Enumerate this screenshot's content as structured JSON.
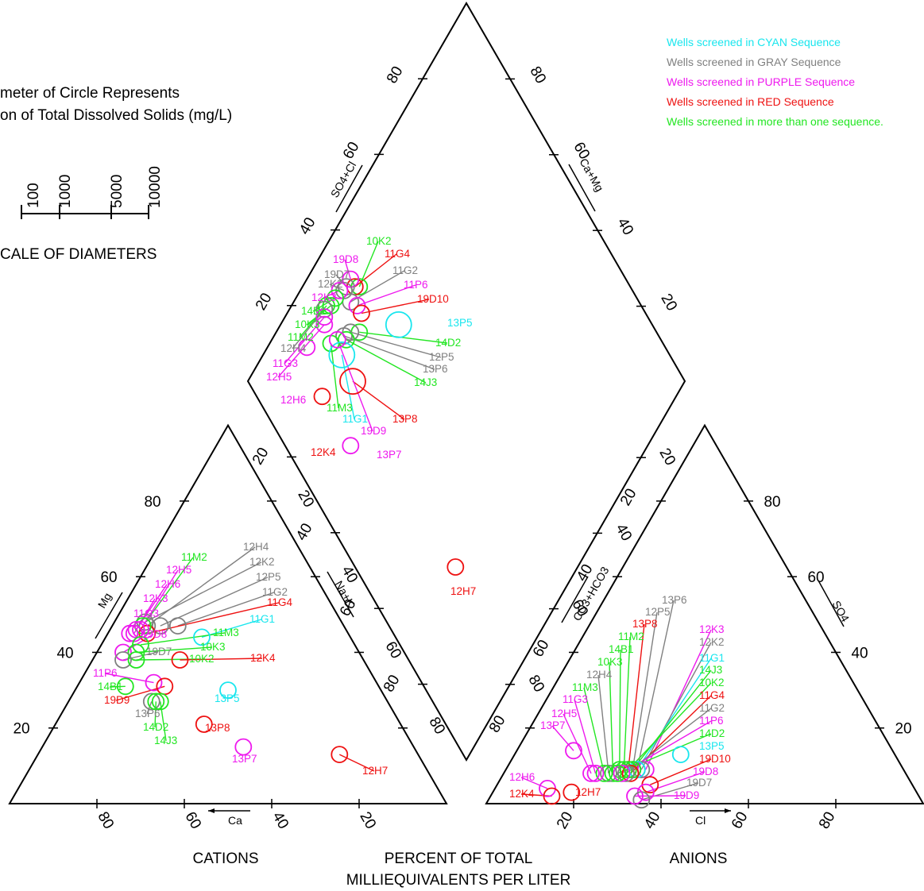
{
  "colors": {
    "cyan": "#19e6ee",
    "gray": "#808080",
    "purple": "#ee19ee",
    "red": "#ee1111",
    "green": "#22e622",
    "axis": "#000000"
  },
  "legend": [
    {
      "text": "Wells screened in CYAN Sequence",
      "color": "cyan"
    },
    {
      "text": "Wells screened in GRAY Sequence",
      "color": "gray"
    },
    {
      "text": "Wells screened in PURPLE Sequence",
      "color": "purple"
    },
    {
      "text": "Wells screened in RED Sequence",
      "color": "red"
    },
    {
      "text": "Wells screened in more than one sequence.",
      "color": "green"
    }
  ],
  "scale_note": {
    "line1": "meter of Circle Represents",
    "line2": "on of Total Dissolved Solids (mg/L)",
    "ticks": [
      "100",
      "1000",
      "5000",
      "10000"
    ],
    "caption": "CALE OF DIAMETERS"
  },
  "bottom_labels": {
    "cations": "CATIONS",
    "anions": "ANIONS",
    "percent_line1": "PERCENT OF TOTAL",
    "percent_line2": "MILLIEQUIVALENTS PER LITER"
  },
  "axes": {
    "mg": "Mg",
    "ca": "Ca",
    "na_k": "Na+K",
    "so4_cl": "SO4+Cl",
    "ca_mg": "Ca+Mg",
    "co3_hco3": "CO3+HCO3",
    "cl": "Cl",
    "so4": "SO4"
  },
  "chart_data": {
    "type": "scatter",
    "subtype": "piper-trilinear",
    "ticks": {
      "mg": [
        "20",
        "40",
        "60",
        "80"
      ],
      "ca": [
        "80",
        "60",
        "40",
        "20"
      ],
      "na_k": [
        "20",
        "40",
        "60",
        "80"
      ],
      "so4_cl": [
        "20",
        "40",
        "60",
        "80"
      ],
      "ca_mg": [
        "80",
        "60",
        "40",
        "20"
      ],
      "co3_hco3": [
        "80",
        "60",
        "40",
        "20"
      ],
      "cl": [
        "20",
        "40",
        "60",
        "80"
      ],
      "so4": [
        "20",
        "40",
        "60",
        "80"
      ]
    },
    "cation_points": [
      {
        "id": "12H4",
        "ca": 45,
        "mg": 47,
        "nak": 8,
        "tds": 1000,
        "group": "gray"
      },
      {
        "id": "12K2",
        "ca": 45,
        "mg": 48,
        "nak": 7,
        "tds": 1000,
        "group": "gray"
      },
      {
        "id": "12P5",
        "ca": 42,
        "mg": 47,
        "nak": 11,
        "tds": 1000,
        "group": "gray"
      },
      {
        "id": "11G2",
        "ca": 38,
        "mg": 47,
        "nak": 15,
        "tds": 1000,
        "group": "gray"
      },
      {
        "id": "11G4",
        "ca": 46,
        "mg": 45,
        "nak": 9,
        "tds": 1000,
        "group": "red"
      },
      {
        "id": "11G1",
        "ca": 34,
        "mg": 44,
        "nak": 22,
        "tds": 1000,
        "group": "cyan"
      },
      {
        "id": "11M2",
        "ca": 46,
        "mg": 47,
        "nak": 7,
        "tds": 1000,
        "group": "green"
      },
      {
        "id": "12H5",
        "ca": 47,
        "mg": 46,
        "nak": 7,
        "tds": 1000,
        "group": "purple"
      },
      {
        "id": "12H6",
        "ca": 48,
        "mg": 46,
        "nak": 6,
        "tds": 1000,
        "group": "purple"
      },
      {
        "id": "12K3",
        "ca": 49,
        "mg": 45,
        "nak": 6,
        "tds": 1000,
        "group": "purple"
      },
      {
        "id": "11G3",
        "ca": 50,
        "mg": 45,
        "nak": 5,
        "tds": 1000,
        "group": "purple"
      },
      {
        "id": "11M3",
        "ca": 49,
        "mg": 42,
        "nak": 9,
        "tds": 1000,
        "group": "green"
      },
      {
        "id": "19D8",
        "ca": 54,
        "mg": 40,
        "nak": 6,
        "tds": 1000,
        "group": "purple"
      },
      {
        "id": "10K3",
        "ca": 51,
        "mg": 40,
        "nak": 9,
        "tds": 1000,
        "group": "green"
      },
      {
        "id": "19D7",
        "ca": 55,
        "mg": 38,
        "nak": 7,
        "tds": 1000,
        "group": "gray"
      },
      {
        "id": "10K2",
        "ca": 52,
        "mg": 38,
        "nak": 10,
        "tds": 1000,
        "group": "green"
      },
      {
        "id": "12K4",
        "ca": 42,
        "mg": 38,
        "nak": 20,
        "tds": 1000,
        "group": "red"
      },
      {
        "id": "11P6",
        "ca": 51,
        "mg": 32,
        "nak": 17,
        "tds": 1000,
        "group": "purple"
      },
      {
        "id": "14B1",
        "ca": 58,
        "mg": 31,
        "nak": 11,
        "tds": 1000,
        "group": "green"
      },
      {
        "id": "19D9",
        "ca": 49,
        "mg": 31,
        "nak": 20,
        "tds": 1000,
        "group": "red"
      },
      {
        "id": "13P6",
        "ca": 54,
        "mg": 27,
        "nak": 19,
        "tds": 1000,
        "group": "gray"
      },
      {
        "id": "14D2",
        "ca": 53,
        "mg": 27,
        "nak": 20,
        "tds": 1000,
        "group": "green"
      },
      {
        "id": "14J3",
        "ca": 52,
        "mg": 27,
        "nak": 21,
        "tds": 1000,
        "group": "green"
      },
      {
        "id": "13P5",
        "ca": 35,
        "mg": 30,
        "nak": 35,
        "tds": 1000,
        "group": "cyan"
      },
      {
        "id": "13P8",
        "ca": 45,
        "mg": 21,
        "nak": 34,
        "tds": 1000,
        "group": "red"
      },
      {
        "id": "13P7",
        "ca": 39,
        "mg": 15,
        "nak": 46,
        "tds": 1000,
        "group": "purple"
      },
      {
        "id": "12H7",
        "ca": 18,
        "mg": 13,
        "nak": 69,
        "tds": 1000,
        "group": "red"
      }
    ],
    "anion_points": [
      {
        "id": "13P6",
        "cl": 30,
        "so4": 9,
        "hco3": 61,
        "tds": 1000,
        "group": "gray"
      },
      {
        "id": "12P5",
        "cl": 29,
        "so4": 9,
        "hco3": 62,
        "tds": 1000,
        "group": "gray"
      },
      {
        "id": "13P8",
        "cl": 28,
        "so4": 9,
        "hco3": 63,
        "tds": 1000,
        "group": "red"
      },
      {
        "id": "11M2",
        "cl": 27,
        "so4": 9,
        "hco3": 64,
        "tds": 1000,
        "group": "green"
      },
      {
        "id": "14B1",
        "cl": 26,
        "so4": 9,
        "hco3": 65,
        "tds": 1000,
        "group": "green"
      },
      {
        "id": "10K3",
        "cl": 25,
        "so4": 8,
        "hco3": 67,
        "tds": 1000,
        "group": "green"
      },
      {
        "id": "12H4",
        "cl": 24,
        "so4": 8,
        "hco3": 68,
        "tds": 1000,
        "group": "gray"
      },
      {
        "id": "11M3",
        "cl": 23,
        "so4": 8,
        "hco3": 69,
        "tds": 1000,
        "group": "green"
      },
      {
        "id": "11G3",
        "cl": 21,
        "so4": 8,
        "hco3": 71,
        "tds": 1000,
        "group": "purple"
      },
      {
        "id": "12H5",
        "cl": 20,
        "so4": 8,
        "hco3": 72,
        "tds": 1000,
        "group": "purple"
      },
      {
        "id": "13P7",
        "cl": 13,
        "so4": 14,
        "hco3": 73,
        "tds": 1000,
        "group": "purple"
      },
      {
        "id": "12K3",
        "cl": 32,
        "so4": 9,
        "hco3": 59,
        "tds": 1000,
        "group": "purple"
      },
      {
        "id": "12K2",
        "cl": 31,
        "so4": 9,
        "hco3": 60,
        "tds": 1000,
        "group": "gray"
      },
      {
        "id": "11G1",
        "cl": 30,
        "so4": 9,
        "hco3": 61,
        "tds": 1000,
        "group": "cyan"
      },
      {
        "id": "14J3",
        "cl": 29,
        "so4": 9,
        "hco3": 62,
        "tds": 1000,
        "group": "green"
      },
      {
        "id": "10K2",
        "cl": 28,
        "so4": 9,
        "hco3": 63,
        "tds": 1000,
        "group": "green"
      },
      {
        "id": "11G4",
        "cl": 29,
        "so4": 8,
        "hco3": 63,
        "tds": 1000,
        "group": "red"
      },
      {
        "id": "11G2",
        "cl": 28,
        "so4": 8,
        "hco3": 64,
        "tds": 1000,
        "group": "gray"
      },
      {
        "id": "11P6",
        "cl": 27,
        "so4": 8,
        "hco3": 65,
        "tds": 1000,
        "group": "purple"
      },
      {
        "id": "14D2",
        "cl": 26,
        "so4": 8,
        "hco3": 66,
        "tds": 1000,
        "group": "green"
      },
      {
        "id": "13P5",
        "cl": 38,
        "so4": 13,
        "hco3": 49,
        "tds": 1000,
        "group": "cyan"
      },
      {
        "id": "19D10",
        "cl": 35,
        "so4": 5,
        "hco3": 60,
        "tds": 1000,
        "group": "red"
      },
      {
        "id": "19D8",
        "cl": 35,
        "so4": 3,
        "hco3": 62,
        "tds": 1000,
        "group": "purple"
      },
      {
        "id": "19D7",
        "cl": 35,
        "so4": 1,
        "hco3": 64,
        "tds": 1000,
        "group": "gray"
      },
      {
        "id": "19D9",
        "cl": 33,
        "so4": 2,
        "hco3": 65,
        "tds": 1000,
        "group": "purple"
      },
      {
        "id": "12H6",
        "cl": 12,
        "so4": 4,
        "hco3": 84,
        "tds": 1000,
        "group": "purple"
      },
      {
        "id": "12K4",
        "cl": 14,
        "so4": 2,
        "hco3": 84,
        "tds": 1000,
        "group": "red"
      },
      {
        "id": "12H7",
        "cl": 18,
        "so4": 3,
        "hco3": 79,
        "tds": 1000,
        "group": "red"
      }
    ],
    "diamond_points": [
      {
        "id": "10K2",
        "so4cl": 38,
        "nak": 13,
        "tds": 1000,
        "group": "green"
      },
      {
        "id": "11G4",
        "so4cl": 37,
        "nak": 12,
        "tds": 1000,
        "group": "red"
      },
      {
        "id": "19D8",
        "so4cl": 37,
        "nak": 10,
        "tds": 1000,
        "group": "purple"
      },
      {
        "id": "11G2",
        "so4cl": 34,
        "nak": 13,
        "tds": 1000,
        "group": "gray"
      },
      {
        "id": "19D7",
        "so4cl": 35,
        "nak": 10,
        "tds": 1000,
        "group": "gray"
      },
      {
        "id": "12K2",
        "so4cl": 34,
        "nak": 10,
        "tds": 1000,
        "group": "gray"
      },
      {
        "id": "11P6",
        "so4cl": 35,
        "nak": 15,
        "tds": 1000,
        "group": "purple"
      },
      {
        "id": "12K3",
        "so4cl": 33,
        "nak": 9,
        "tds": 1000,
        "group": "purple"
      },
      {
        "id": "19D10",
        "so4cl": 35,
        "nak": 17,
        "tds": 1000,
        "group": "red"
      },
      {
        "id": "14B1",
        "so4cl": 31,
        "nak": 9,
        "tds": 1000,
        "group": "green"
      },
      {
        "id": "13P5",
        "so4cl": 42,
        "nak": 27,
        "tds": 2500,
        "group": "cyan"
      },
      {
        "id": "10K3",
        "so4cl": 29,
        "nak": 9,
        "tds": 1000,
        "group": "green"
      },
      {
        "id": "11M2",
        "so4cl": 28,
        "nak": 8,
        "tds": 1000,
        "group": "green"
      },
      {
        "id": "14D2",
        "so4cl": 32,
        "nak": 19,
        "tds": 1000,
        "group": "green"
      },
      {
        "id": "12H4",
        "so4cl": 27,
        "nak": 8,
        "tds": 1000,
        "group": "gray"
      },
      {
        "id": "12P5",
        "so4cl": 30,
        "nak": 17,
        "tds": 1000,
        "group": "gray"
      },
      {
        "id": "11G3",
        "so4cl": 26,
        "nak": 9,
        "tds": 1000,
        "group": "purple"
      },
      {
        "id": "13P6",
        "so4cl": 28,
        "nak": 16,
        "tds": 1000,
        "group": "gray"
      },
      {
        "id": "12H5",
        "so4cl": 25,
        "nak": 10,
        "tds": 1000,
        "group": "purple"
      },
      {
        "id": "14J3",
        "so4cl": 28,
        "nak": 17,
        "tds": 1000,
        "group": "green"
      },
      {
        "id": "12H6",
        "so4cl": 18,
        "nak": 9,
        "tds": 1000,
        "group": "purple"
      },
      {
        "id": "11M3",
        "so4cl": 24,
        "nak": 14,
        "tds": 1000,
        "group": "green"
      },
      {
        "id": "11G1",
        "so4cl": 25,
        "nak": 18,
        "tds": 2500,
        "group": "cyan"
      },
      {
        "id": "13P8",
        "so4cl": 24,
        "nak": 24,
        "tds": 2500,
        "group": "red"
      },
      {
        "id": "19D9",
        "so4cl": 26,
        "nak": 15,
        "tds": 1000,
        "group": "purple"
      },
      {
        "id": "12K4",
        "so4cl": 15,
        "nak": 19,
        "tds": 1000,
        "group": "red"
      },
      {
        "id": "13P7",
        "so4cl": 15,
        "nak": 32,
        "tds": 1000,
        "group": "purple"
      },
      {
        "id": "12H7",
        "so4cl": 23,
        "nak": 72,
        "tds": 1000,
        "group": "red"
      }
    ]
  }
}
